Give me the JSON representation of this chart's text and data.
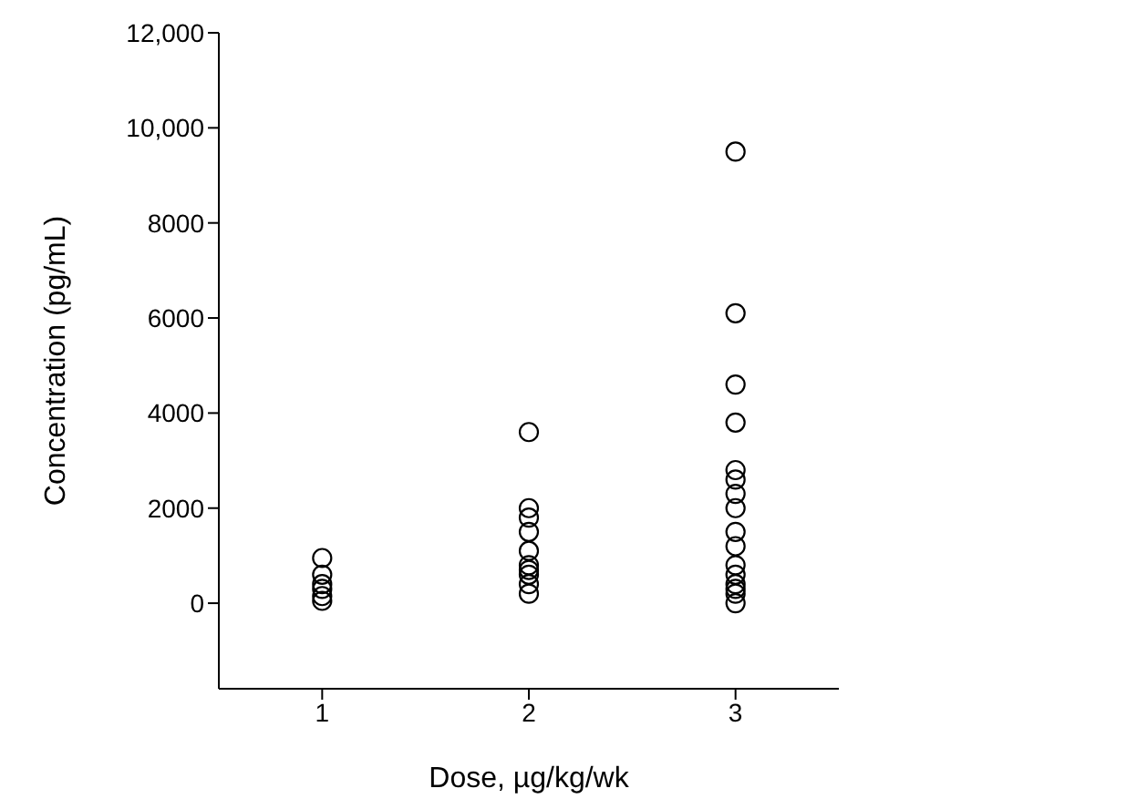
{
  "chart_data": {
    "type": "scatter",
    "xlabel": "Dose, µg/kg/wk",
    "ylabel": "Concentration (pg/mL)",
    "series": [
      {
        "type": "scatter",
        "color": "#000000",
        "x": [
          1,
          1,
          1,
          1,
          1,
          1,
          2,
          2,
          2,
          2,
          2,
          2,
          2,
          2,
          2,
          2,
          3,
          3,
          3,
          3,
          3,
          3,
          3,
          3,
          3,
          3,
          3,
          3,
          3,
          3,
          3,
          3
        ],
        "values": [
          950,
          600,
          400,
          300,
          150,
          50,
          3600,
          2000,
          1800,
          1500,
          1100,
          800,
          700,
          600,
          400,
          200,
          9500,
          6100,
          4600,
          3800,
          2800,
          2600,
          2300,
          2000,
          1500,
          1200,
          800,
          600,
          400,
          300,
          200,
          0
        ]
      }
    ],
    "xlim": [
      0.5,
      3.5
    ],
    "xticks": [
      1,
      2,
      3
    ],
    "ylim": [
      -1800,
      12000
    ],
    "yticks": [
      0,
      2000,
      4000,
      6000,
      8000,
      {
        "value": 10000,
        "label": "10,000"
      },
      {
        "value": 12000,
        "label": "12,000"
      }
    ],
    "marker": "circle",
    "grid": false,
    "legend": false
  }
}
